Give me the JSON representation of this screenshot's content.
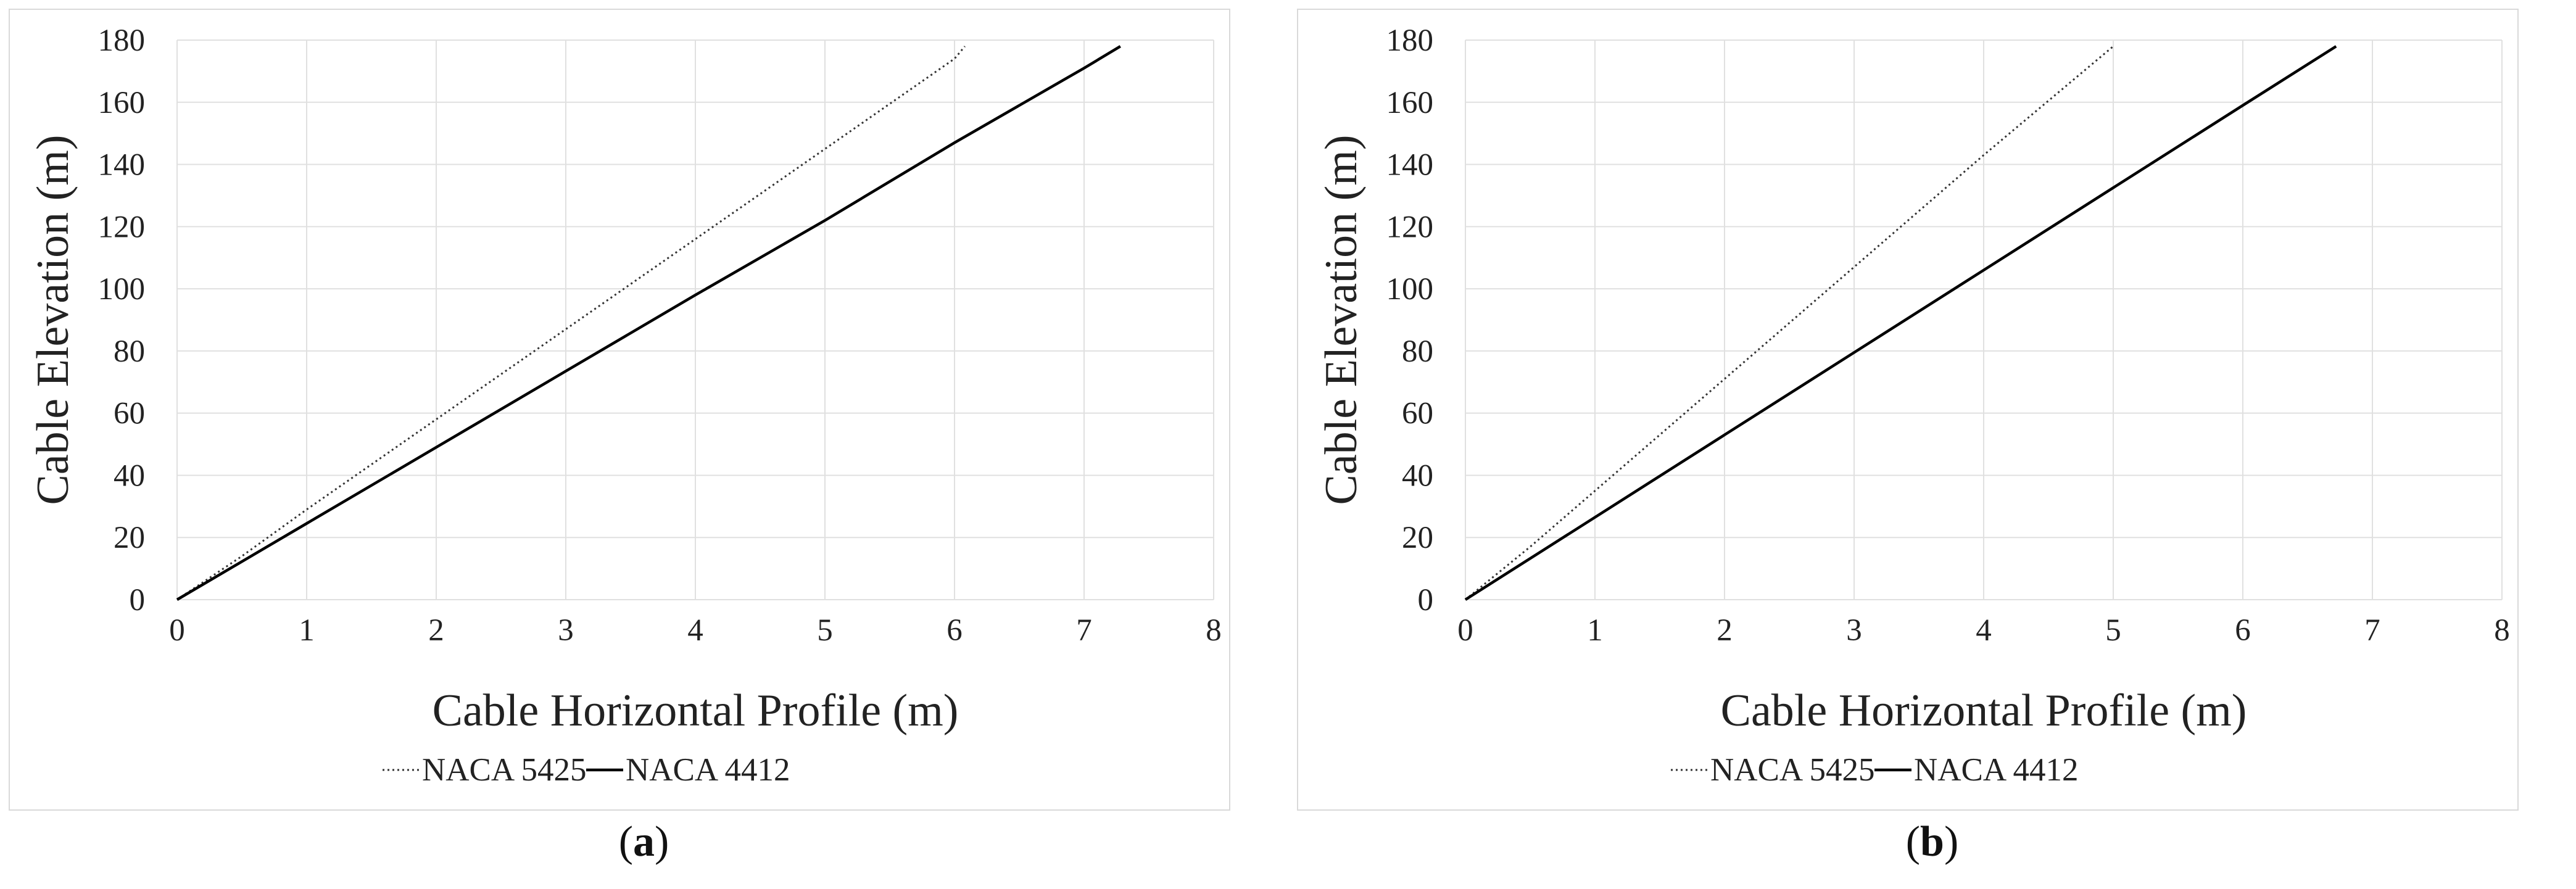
{
  "chart_data": [
    {
      "type": "line",
      "panel_label": "a",
      "xlabel": "Cable Horizontal Profile (m)",
      "ylabel": "Cable Elevation (m)",
      "xlim": [
        0,
        8
      ],
      "ylim": [
        0,
        180
      ],
      "xticks": [
        0,
        1,
        2,
        3,
        4,
        5,
        6,
        7,
        8
      ],
      "yticks": [
        0,
        20,
        40,
        60,
        80,
        100,
        120,
        140,
        160,
        180
      ],
      "grid": true,
      "legend_position": "bottom",
      "series": [
        {
          "name": "NACA 5425",
          "style": "dotted",
          "color": "#333333",
          "x": [
            0,
            0.5,
            1,
            2,
            3,
            4,
            5,
            6,
            6.08
          ],
          "y": [
            0,
            14,
            29,
            58,
            87,
            116,
            145,
            174,
            178
          ]
        },
        {
          "name": "NACA 4412",
          "style": "solid",
          "color": "#000000",
          "x": [
            0,
            1,
            2,
            3,
            4,
            5,
            6,
            7,
            7.28
          ],
          "y": [
            0,
            24.5,
            49,
            73.5,
            98,
            122,
            147,
            171,
            178
          ]
        }
      ]
    },
    {
      "type": "line",
      "panel_label": "b",
      "xlabel": "Cable Horizontal Profile (m)",
      "ylabel": "Cable Elevation (m)",
      "xlim": [
        0,
        8
      ],
      "ylim": [
        0,
        180
      ],
      "xticks": [
        0,
        1,
        2,
        3,
        4,
        5,
        6,
        7,
        8
      ],
      "yticks": [
        0,
        20,
        40,
        60,
        80,
        100,
        120,
        140,
        160,
        180
      ],
      "grid": true,
      "legend_position": "bottom",
      "series": [
        {
          "name": "NACA 5425",
          "style": "dotted",
          "color": "#333333",
          "x": [
            0,
            0.5,
            1,
            2,
            3,
            4,
            5
          ],
          "y": [
            0,
            17,
            35,
            71,
            107,
            143,
            178
          ]
        },
        {
          "name": "NACA 4412",
          "style": "solid",
          "color": "#000000",
          "x": [
            0,
            1,
            2,
            3,
            4,
            5,
            6,
            6.72
          ],
          "y": [
            0,
            26.5,
            53,
            79.5,
            106,
            132.5,
            159,
            178
          ]
        }
      ]
    }
  ]
}
